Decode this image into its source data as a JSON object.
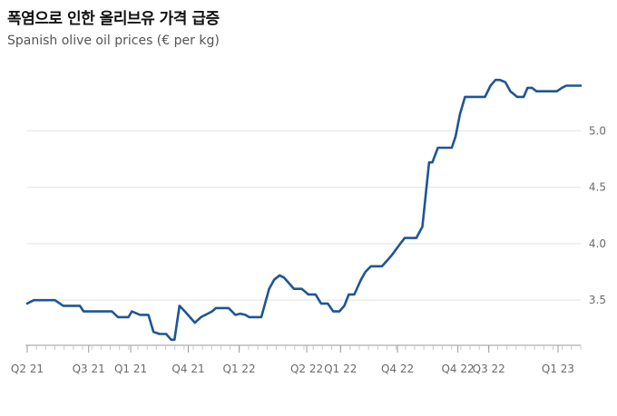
{
  "title": "폭염으로 인한 올리브유 가격 급증",
  "subtitle": "Spanish olive oil prices (€ per kg)",
  "colors": {
    "line": "#1f5596",
    "grid": "#e2e2e2",
    "axis": "#9a9a9a",
    "text": "#6b6b6b"
  },
  "chart_data": {
    "type": "line",
    "title": "폭염으로 인한 올리브유 가격 급증",
    "subtitle": "Spanish olive oil prices (€ per kg)",
    "ylim": [
      3.1,
      5.5
    ],
    "yticks": [
      3.5,
      4.0,
      4.5,
      5.0
    ],
    "ytick_labels": [
      "3.5",
      "4.0",
      "4.5",
      "5.0"
    ],
    "xlim": [
      0,
      100
    ],
    "xticks": [
      {
        "x": 0,
        "label": "Q2 21"
      },
      {
        "x": 11.1,
        "label": "Q3 21"
      },
      {
        "x": 18.7,
        "label": "Q1 21"
      },
      {
        "x": 29.1,
        "label": "Q4 21"
      },
      {
        "x": 38.3,
        "label": "Q1 22"
      },
      {
        "x": 50.5,
        "label": "Q2 22"
      },
      {
        "x": 56.6,
        "label": "Q1 22"
      },
      {
        "x": 66.9,
        "label": "Q4 22"
      },
      {
        "x": 77.8,
        "label": "Q4 22"
      },
      {
        "x": 83.4,
        "label": "Q3 22"
      },
      {
        "x": 95.9,
        "label": "Q1 23"
      }
    ],
    "grid": true,
    "y_axis_side": "right",
    "series": [
      {
        "x": [
          0,
          1.2,
          2.4,
          3.6,
          4.3,
          5.0,
          6.5,
          7.7,
          8.3,
          9.5,
          10.2,
          11.8,
          12.4,
          14.1,
          15.3,
          16.4,
          17.0,
          17.6,
          18.3,
          18.9,
          20.4,
          21.1,
          21.9,
          22.8,
          23.9,
          25.1,
          26.0,
          26.6,
          27.5,
          28.5,
          29.4,
          30.3,
          31.4,
          32.6,
          33.4,
          34.1,
          35.1,
          35.7,
          36.4,
          37.6,
          38.5,
          39.4,
          40.1,
          41.2,
          42.3,
          43.7,
          44.6,
          45.6,
          46.4,
          47.3,
          48.2,
          49.6,
          50.8,
          51.6,
          52.1,
          53.1,
          54.3,
          55.3,
          56.4,
          57.3,
          58.1,
          59.1,
          60.3,
          61.1,
          62.1,
          62.9,
          64.1,
          65.0,
          65.9,
          67.4,
          68.2,
          69.3,
          70.3,
          71.4,
          72.6,
          73.2,
          74.2,
          74.9,
          75.9,
          76.7,
          77.4,
          78.2,
          79.1,
          80.6,
          81.9,
          82.7,
          83.7,
          84.6,
          85.4,
          86.4,
          87.3,
          88.5,
          89.7,
          90.4,
          91.2,
          92.0,
          92.9,
          93.7,
          94.7,
          95.7,
          96.6,
          97.4,
          98.2,
          99.1,
          99.7,
          100
        ],
        "y": [
          3.47,
          3.5,
          3.5,
          3.5,
          3.5,
          3.5,
          3.45,
          3.45,
          3.45,
          3.45,
          3.4,
          3.4,
          3.4,
          3.4,
          3.4,
          3.35,
          3.35,
          3.35,
          3.35,
          3.4,
          3.37,
          3.37,
          3.37,
          3.22,
          3.2,
          3.2,
          3.15,
          3.15,
          3.45,
          3.4,
          3.35,
          3.3,
          3.35,
          3.38,
          3.4,
          3.43,
          3.43,
          3.43,
          3.43,
          3.37,
          3.38,
          3.37,
          3.35,
          3.35,
          3.35,
          3.6,
          3.68,
          3.72,
          3.7,
          3.65,
          3.6,
          3.6,
          3.55,
          3.55,
          3.55,
          3.47,
          3.47,
          3.4,
          3.4,
          3.45,
          3.55,
          3.55,
          3.68,
          3.75,
          3.8,
          3.8,
          3.8,
          3.85,
          3.9,
          4.0,
          4.05,
          4.05,
          4.05,
          4.15,
          4.72,
          4.72,
          4.85,
          4.85,
          4.85,
          4.85,
          4.95,
          5.15,
          5.3,
          5.3,
          5.3,
          5.3,
          5.4,
          5.45,
          5.45,
          5.43,
          5.35,
          5.3,
          5.3,
          5.38,
          5.38,
          5.35,
          5.35,
          5.35,
          5.35,
          5.35,
          5.38,
          5.4,
          5.4,
          5.4,
          5.4,
          5.4
        ]
      }
    ]
  }
}
